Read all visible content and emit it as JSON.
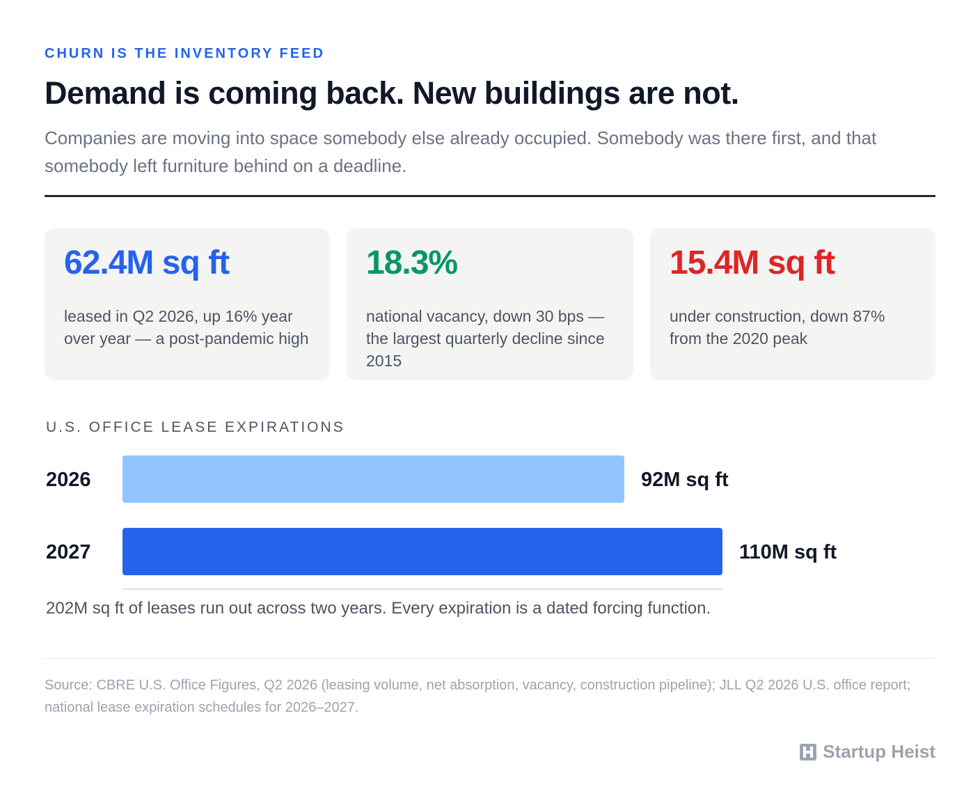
{
  "header": {
    "eyebrow": "CHURN IS THE INVENTORY FEED",
    "title": "Demand is coming back. New buildings are not.",
    "subtitle": "Companies are moving into space somebody else already occupied. Somebody was there first, and that somebody left furniture behind on a deadline."
  },
  "stats": [
    {
      "value": "62.4M sq ft",
      "description": "leased in Q2 2026, up 16% year over year — a post-pandemic high",
      "color": "#2563eb"
    },
    {
      "value": "18.3%",
      "description": "national vacancy, down 30 bps — the largest quarterly decline since 2015",
      "color": "#059669"
    },
    {
      "value": "15.4M sq ft",
      "description": "under construction, down 87% from the 2020 peak",
      "color": "#dc2626"
    }
  ],
  "chart_data": {
    "type": "bar",
    "orientation": "horizontal",
    "title": "U.S. OFFICE LEASE EXPIRATIONS",
    "categories": [
      "2026",
      "2027"
    ],
    "values": [
      92,
      110
    ],
    "value_labels": [
      "92M sq ft",
      "110M sq ft"
    ],
    "colors": [
      "#93c5fd",
      "#2563eb"
    ],
    "unit": "M sq ft",
    "xlim": [
      0,
      110
    ],
    "grid": false,
    "note": "202M sq ft of leases run out across two years. Every expiration is a dated forcing function."
  },
  "footer": {
    "source": "Source: CBRE U.S. Office Figures, Q2 2026 (leasing volume, net absorption, vacancy, construction pipeline); JLL Q2 2026 U.S. office report; national lease expiration schedules for 2026–2027.",
    "brand": "Startup Heist",
    "brand_icon": "building-h-icon"
  }
}
